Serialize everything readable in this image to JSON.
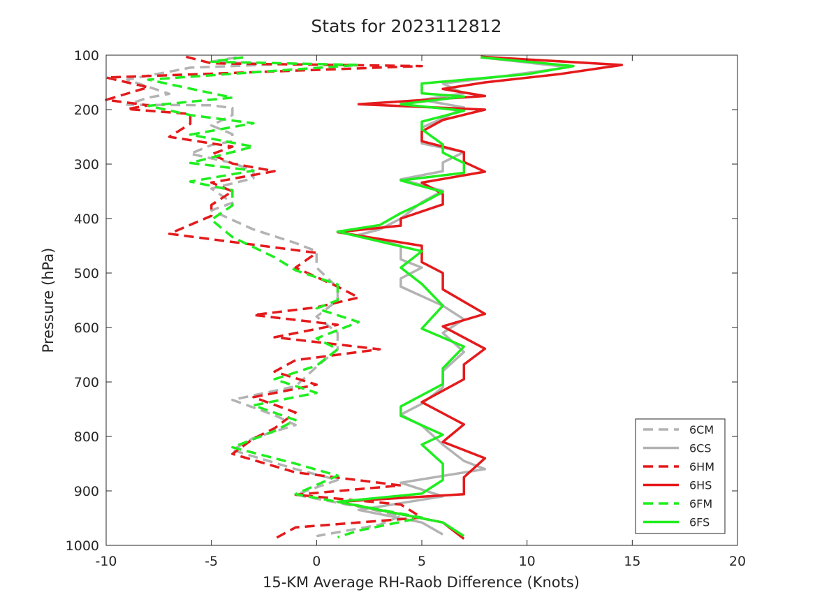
{
  "chart_data": {
    "type": "line",
    "title": "Stats for 2023112812",
    "xlabel": "15-KM Average RH-Raob Difference (Knots)",
    "ylabel": "Pressure (hPa)",
    "xlim": [
      -10,
      20
    ],
    "ylim": [
      1000,
      100
    ],
    "y_reversed": true,
    "grid": false,
    "legend_position": "bottom-right",
    "xticks": [
      "-10",
      "-5",
      "0",
      "5",
      "10",
      "15",
      "20"
    ],
    "yticks": [
      "100",
      "200",
      "300",
      "400",
      "500",
      "600",
      "700",
      "800",
      "900",
      "1000"
    ],
    "series": [
      {
        "name": "6CM",
        "color": "#b3b3b3",
        "dash": "dashed",
        "points": [
          [
            -3.8,
            104
          ],
          [
            -5,
            112
          ],
          [
            -2,
            117
          ],
          [
            -6,
            123
          ],
          [
            -9,
            145
          ],
          [
            -7,
            171
          ],
          [
            -8,
            178
          ],
          [
            -9,
            191
          ],
          [
            -5,
            192
          ],
          [
            -4,
            197
          ],
          [
            -4,
            210
          ],
          [
            -5,
            229
          ],
          [
            -4,
            245
          ],
          [
            -4,
            258
          ],
          [
            -5,
            265
          ],
          [
            -6,
            281
          ],
          [
            -4,
            298
          ],
          [
            -3,
            312
          ],
          [
            -3,
            326
          ],
          [
            -5,
            345
          ],
          [
            -4,
            371
          ],
          [
            -5,
            385
          ],
          [
            -3,
            420
          ],
          [
            -1,
            445
          ],
          [
            0,
            460
          ],
          [
            0,
            490
          ],
          [
            1,
            527
          ],
          [
            1,
            550
          ],
          [
            0,
            580
          ],
          [
            1,
            610
          ],
          [
            1,
            640
          ],
          [
            0,
            672
          ],
          [
            -1,
            708
          ],
          [
            -4,
            733
          ],
          [
            -2,
            761
          ],
          [
            -1,
            779
          ],
          [
            -3,
            803
          ],
          [
            -4,
            825
          ],
          [
            -1,
            860
          ],
          [
            1,
            880
          ],
          [
            -1,
            907
          ],
          [
            2,
            929
          ],
          [
            4,
            946
          ],
          [
            3,
            962
          ],
          [
            0,
            983
          ]
        ]
      },
      {
        "name": "6CS",
        "color": "#b3b3b3",
        "dash": "solid",
        "points": [
          [
            7.8,
            104
          ],
          [
            12,
            122
          ],
          [
            9,
            138
          ],
          [
            6,
            152
          ],
          [
            7,
            170
          ],
          [
            5,
            182
          ],
          [
            7,
            196
          ],
          [
            6,
            216
          ],
          [
            5,
            233
          ],
          [
            5,
            246
          ],
          [
            5,
            262
          ],
          [
            7,
            278
          ],
          [
            6,
            297
          ],
          [
            6,
            313
          ],
          [
            4,
            328
          ],
          [
            6,
            349
          ],
          [
            5,
            370
          ],
          [
            4,
            400
          ],
          [
            3,
            420
          ],
          [
            2,
            430
          ],
          [
            4,
            450
          ],
          [
            4,
            475
          ],
          [
            5,
            490
          ],
          [
            4,
            510
          ],
          [
            4,
            525
          ],
          [
            6,
            560
          ],
          [
            7,
            585
          ],
          [
            6,
            610
          ],
          [
            7,
            645
          ],
          [
            6,
            680
          ],
          [
            6,
            710
          ],
          [
            5,
            740
          ],
          [
            4,
            760
          ],
          [
            5,
            780
          ],
          [
            6,
            815
          ],
          [
            7,
            845
          ],
          [
            8,
            860
          ],
          [
            4,
            885
          ],
          [
            6,
            910
          ],
          [
            2,
            935
          ],
          [
            5,
            958
          ],
          [
            6,
            980
          ]
        ]
      },
      {
        "name": "6HM",
        "color": "#e41a1c",
        "dash": "dashed",
        "points": [
          [
            -6.2,
            103
          ],
          [
            -5,
            115
          ],
          [
            5,
            120
          ],
          [
            -10,
            141
          ],
          [
            -8,
            159
          ],
          [
            -10,
            182
          ],
          [
            -8,
            192
          ],
          [
            -9,
            199
          ],
          [
            -6,
            208
          ],
          [
            -6,
            226
          ],
          [
            -7,
            250
          ],
          [
            -4,
            268
          ],
          [
            -5,
            282
          ],
          [
            -4,
            299
          ],
          [
            -2,
            313
          ],
          [
            -5,
            334
          ],
          [
            -4,
            350
          ],
          [
            -5,
            375
          ],
          [
            -5,
            395
          ],
          [
            -7,
            428
          ],
          [
            0,
            463
          ],
          [
            -1,
            490
          ],
          [
            1,
            525
          ],
          [
            2,
            545
          ],
          [
            0,
            563
          ],
          [
            -3,
            577
          ],
          [
            1,
            595
          ],
          [
            -2,
            618
          ],
          [
            3,
            640
          ],
          [
            -1,
            660
          ],
          [
            -2,
            681
          ],
          [
            0,
            705
          ],
          [
            -3,
            728
          ],
          [
            -1,
            756
          ],
          [
            -2,
            785
          ],
          [
            -3,
            804
          ],
          [
            -4,
            832
          ],
          [
            -1,
            866
          ],
          [
            4,
            890
          ],
          [
            -1,
            907
          ],
          [
            4,
            925
          ],
          [
            5,
            949
          ],
          [
            -1,
            967
          ],
          [
            -2,
            988
          ]
        ]
      },
      {
        "name": "6HS",
        "color": "#e41a1c",
        "dash": "solid",
        "points": [
          [
            7.8,
            103
          ],
          [
            14.5,
            118
          ],
          [
            11.5,
            135
          ],
          [
            8,
            150
          ],
          [
            6,
            162
          ],
          [
            8,
            175
          ],
          [
            2,
            190
          ],
          [
            8,
            200
          ],
          [
            6,
            219
          ],
          [
            5,
            240
          ],
          [
            5,
            258
          ],
          [
            7,
            278
          ],
          [
            7,
            296
          ],
          [
            8,
            314
          ],
          [
            5,
            334
          ],
          [
            6,
            355
          ],
          [
            6,
            374
          ],
          [
            4,
            400
          ],
          [
            4,
            413
          ],
          [
            1,
            425
          ],
          [
            5,
            450
          ],
          [
            5,
            480
          ],
          [
            6,
            500
          ],
          [
            6,
            530
          ],
          [
            8,
            575
          ],
          [
            6,
            598
          ],
          [
            8,
            639
          ],
          [
            7,
            668
          ],
          [
            7,
            695
          ],
          [
            5,
            737
          ],
          [
            7,
            778
          ],
          [
            6,
            810
          ],
          [
            8,
            840
          ],
          [
            7,
            875
          ],
          [
            7,
            906
          ],
          [
            1,
            920
          ],
          [
            6,
            958
          ],
          [
            7,
            988
          ]
        ]
      },
      {
        "name": "6FM",
        "color": "#1fee1f",
        "dash": "dashed",
        "points": [
          [
            -3.5,
            104
          ],
          [
            -5,
            112
          ],
          [
            2,
            118
          ],
          [
            -8,
            145
          ],
          [
            -4,
            178
          ],
          [
            -8,
            193
          ],
          [
            -6,
            210
          ],
          [
            -3,
            225
          ],
          [
            -6,
            246
          ],
          [
            -3,
            268
          ],
          [
            -6,
            298
          ],
          [
            -3,
            312
          ],
          [
            -6,
            332
          ],
          [
            -4,
            348
          ],
          [
            -4,
            376
          ],
          [
            -5,
            402
          ],
          [
            -4,
            434
          ],
          [
            -2,
            471
          ],
          [
            -1,
            495
          ],
          [
            1,
            521
          ],
          [
            1,
            550
          ],
          [
            0,
            565
          ],
          [
            2,
            590
          ],
          [
            0,
            620
          ],
          [
            1,
            640
          ],
          [
            0,
            670
          ],
          [
            -2,
            695
          ],
          [
            0,
            720
          ],
          [
            -3,
            743
          ],
          [
            -1,
            770
          ],
          [
            -2,
            790
          ],
          [
            -4,
            820
          ],
          [
            -1,
            850
          ],
          [
            1,
            872
          ],
          [
            -1,
            906
          ],
          [
            2,
            927
          ],
          [
            5,
            949
          ],
          [
            2,
            973
          ],
          [
            1,
            985
          ]
        ]
      },
      {
        "name": "6FS",
        "color": "#1fee1f",
        "dash": "solid",
        "points": [
          [
            7.8,
            104
          ],
          [
            12.2,
            120
          ],
          [
            10,
            135
          ],
          [
            5,
            152
          ],
          [
            5,
            170
          ],
          [
            7,
            176
          ],
          [
            4,
            190
          ],
          [
            7,
            202
          ],
          [
            5,
            222
          ],
          [
            5,
            236
          ],
          [
            6,
            264
          ],
          [
            6,
            279
          ],
          [
            7,
            298
          ],
          [
            7,
            316
          ],
          [
            4,
            330
          ],
          [
            6,
            351
          ],
          [
            5,
            372
          ],
          [
            4,
            390
          ],
          [
            3,
            412
          ],
          [
            1,
            424
          ],
          [
            5,
            460
          ],
          [
            4,
            490
          ],
          [
            5,
            520
          ],
          [
            6,
            560
          ],
          [
            5,
            602
          ],
          [
            7,
            635
          ],
          [
            6,
            675
          ],
          [
            6,
            704
          ],
          [
            4,
            745
          ],
          [
            4,
            762
          ],
          [
            6,
            797
          ],
          [
            5,
            815
          ],
          [
            6,
            850
          ],
          [
            6,
            880
          ],
          [
            5,
            905
          ],
          [
            1,
            920
          ],
          [
            6,
            958
          ],
          [
            7,
            983
          ]
        ]
      }
    ]
  }
}
